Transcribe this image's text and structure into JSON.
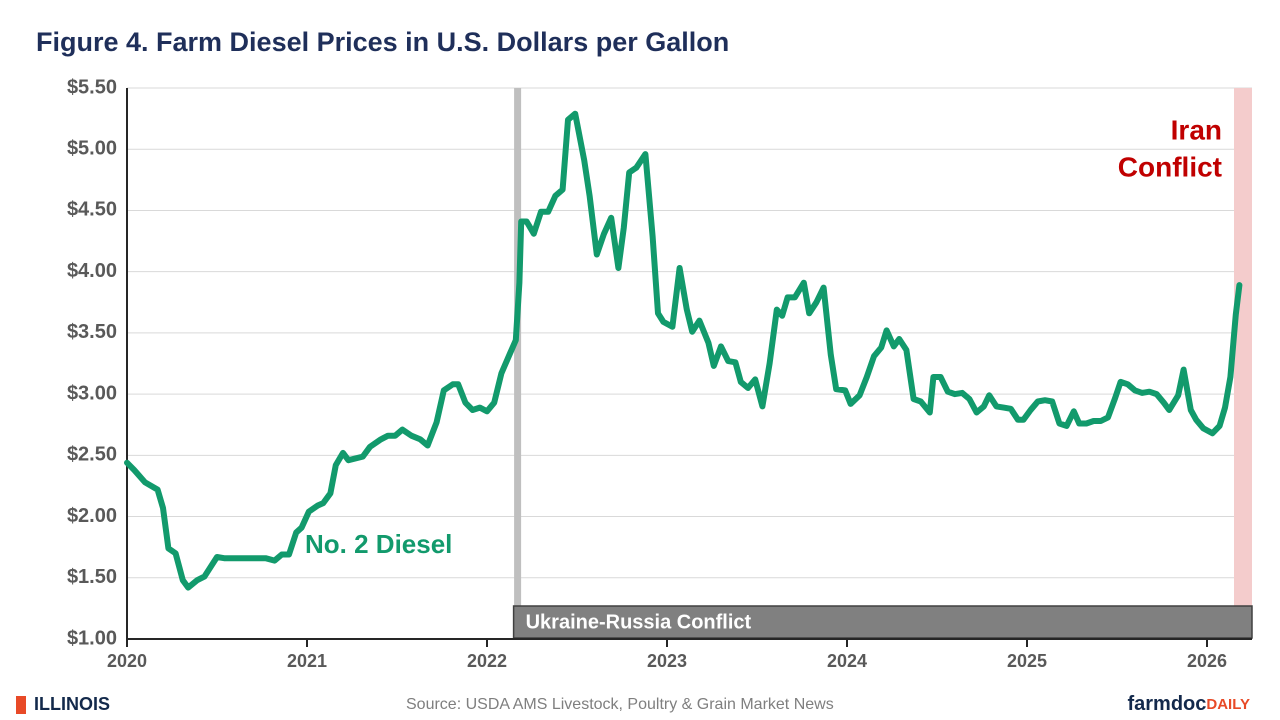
{
  "chart_data": {
    "type": "line",
    "title": "Figure 4. Farm Diesel Prices in U.S. Dollars per Gallon",
    "x": [
      2020.0,
      2020.04,
      2020.1,
      2020.17,
      2020.2,
      2020.23,
      2020.27,
      2020.31,
      2020.34,
      2020.39,
      2020.43,
      2020.5,
      2020.54,
      2020.77,
      2020.82,
      2020.86,
      2020.9,
      2020.94,
      2020.97,
      2021.01,
      2021.06,
      2021.09,
      2021.13,
      2021.16,
      2021.2,
      2021.23,
      2021.31,
      2021.35,
      2021.41,
      2021.45,
      2021.49,
      2021.53,
      2021.58,
      2021.63,
      2021.67,
      2021.72,
      2021.76,
      2021.81,
      2021.84,
      2021.88,
      2021.92,
      2021.96,
      2022.0,
      2022.04,
      2022.08,
      2022.13,
      2022.16,
      2022.18,
      2022.19,
      2022.22,
      2022.26,
      2022.3,
      2022.34,
      2022.38,
      2022.42,
      2022.45,
      2022.49,
      2022.54,
      2022.57,
      2022.61,
      2022.65,
      2022.69,
      2022.73,
      2022.76,
      2022.79,
      2022.83,
      2022.88,
      2022.92,
      2022.95,
      2022.98,
      2023.03,
      2023.07,
      2023.11,
      2023.14,
      2023.18,
      2023.23,
      2023.26,
      2023.3,
      2023.34,
      2023.38,
      2023.41,
      2023.45,
      2023.49,
      2023.53,
      2023.57,
      2023.61,
      2023.64,
      2023.67,
      2023.71,
      2023.76,
      2023.79,
      2023.83,
      2023.87,
      2023.91,
      2023.94,
      2023.99,
      2024.02,
      2024.07,
      2024.11,
      2024.15,
      2024.19,
      2024.22,
      2024.26,
      2024.29,
      2024.33,
      2024.37,
      2024.41,
      2024.46,
      2024.48,
      2024.52,
      2024.56,
      2024.6,
      2024.64,
      2024.68,
      2024.72,
      2024.76,
      2024.79,
      2024.83,
      2024.87,
      2024.91,
      2024.95,
      2024.98,
      2025.02,
      2025.06,
      2025.1,
      2025.14,
      2025.18,
      2025.22,
      2025.26,
      2025.29,
      2025.33,
      2025.37,
      2025.41,
      2025.45,
      2025.49,
      2025.52,
      2025.56,
      2025.6,
      2025.64,
      2025.68,
      2025.72,
      2025.76,
      2025.79,
      2025.84,
      2025.87,
      2025.91,
      2025.94,
      2025.98,
      2026.03,
      2026.07,
      2026.1,
      2026.13,
      2026.16,
      2026.18
    ],
    "series": [
      {
        "name": "No. 2 Diesel",
        "color": "#129a6c",
        "values": [
          2.44,
          2.38,
          2.28,
          2.22,
          2.07,
          1.74,
          1.7,
          1.48,
          1.42,
          1.48,
          1.51,
          1.67,
          1.66,
          1.66,
          1.64,
          1.69,
          1.69,
          1.87,
          1.91,
          2.04,
          2.09,
          2.11,
          2.19,
          2.42,
          2.52,
          2.46,
          2.49,
          2.57,
          2.63,
          2.66,
          2.66,
          2.71,
          2.66,
          2.63,
          2.58,
          2.77,
          3.03,
          3.08,
          3.08,
          2.93,
          2.87,
          2.89,
          2.86,
          2.93,
          3.17,
          3.34,
          3.44,
          3.91,
          4.41,
          4.41,
          4.31,
          4.49,
          4.49,
          4.62,
          4.67,
          5.24,
          5.29,
          4.91,
          4.62,
          4.14,
          4.31,
          4.44,
          4.03,
          4.36,
          4.81,
          4.85,
          4.96,
          4.29,
          3.66,
          3.59,
          3.55,
          4.03,
          3.69,
          3.51,
          3.6,
          3.42,
          3.23,
          3.39,
          3.27,
          3.26,
          3.1,
          3.05,
          3.12,
          2.9,
          3.25,
          3.69,
          3.64,
          3.79,
          3.79,
          3.91,
          3.66,
          3.75,
          3.87,
          3.32,
          3.04,
          3.03,
          2.92,
          2.99,
          3.14,
          3.31,
          3.38,
          3.52,
          3.39,
          3.45,
          3.36,
          2.96,
          2.94,
          2.85,
          3.14,
          3.14,
          3.02,
          3.0,
          3.01,
          2.96,
          2.85,
          2.9,
          2.99,
          2.9,
          2.89,
          2.88,
          2.79,
          2.79,
          2.87,
          2.94,
          2.95,
          2.94,
          2.76,
          2.74,
          2.86,
          2.76,
          2.76,
          2.78,
          2.78,
          2.81,
          2.97,
          3.1,
          3.08,
          3.03,
          3.01,
          3.02,
          3.0,
          2.93,
          2.87,
          2.99,
          3.2,
          2.87,
          2.79,
          2.72,
          2.68,
          2.74,
          2.89,
          3.14,
          3.65,
          3.89
        ]
      }
    ],
    "xlim": [
      2020,
      2026.25
    ],
    "xticks": [
      2020,
      2021,
      2022,
      2023,
      2024,
      2025,
      2026
    ],
    "ylim": [
      1,
      5.5
    ],
    "yticks": [
      {
        "value": 1,
        "label": "$1.00"
      },
      {
        "value": 1.5,
        "label": "$1.50"
      },
      {
        "value": 2,
        "label": "$2.00"
      },
      {
        "value": 2.5,
        "label": "$2.50"
      },
      {
        "value": 3,
        "label": "$3.00"
      },
      {
        "value": 3.5,
        "label": "$3.50"
      },
      {
        "value": 4,
        "label": "$4.00"
      },
      {
        "value": 4.5,
        "label": "$4.50"
      },
      {
        "value": 5,
        "label": "$5.00"
      },
      {
        "value": 5.5,
        "label": "$5.50"
      }
    ],
    "grid": true,
    "events": [
      {
        "label": "Ukraine-Russia Conflict",
        "start": 2022.17,
        "color": "#808080"
      },
      {
        "lines": [
          "Iran",
          "Conflict"
        ],
        "start": 2026.15,
        "color": "#c00000"
      }
    ],
    "source": "Source: USDA AMS Livestock, Poultry & Grain Market News",
    "logo_left": "ILLINOIS",
    "logo_right": [
      "farmdoc",
      "DAILY"
    ]
  }
}
